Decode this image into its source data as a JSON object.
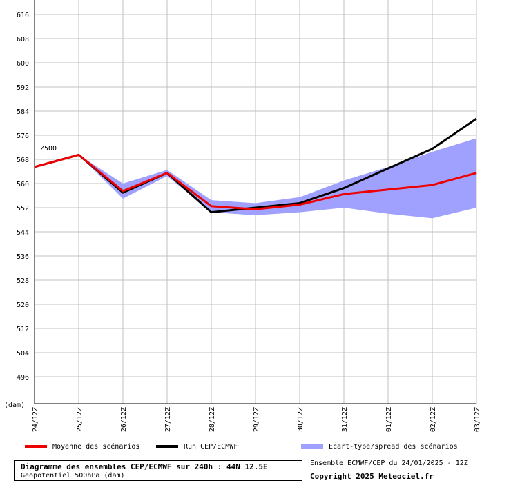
{
  "chart_data": {
    "type": "line",
    "y_unit_label": "(dam)",
    "series_label": "Z500",
    "ylim": [
      488,
      620
    ],
    "yticks": [
      496,
      504,
      512,
      520,
      528,
      536,
      544,
      552,
      560,
      568,
      576,
      584,
      592,
      600,
      608,
      616
    ],
    "categories": [
      "24/12Z",
      "25/12Z",
      "26/12Z",
      "27/12Z",
      "28/12Z",
      "29/12Z",
      "30/12Z",
      "31/12Z",
      "01/12Z",
      "02/12Z",
      "03/12Z"
    ],
    "grid": true,
    "series": [
      {
        "name": "Moyenne des scénarios",
        "color": "#ee0000",
        "values": [
          565.5,
          569.5,
          557.5,
          563.5,
          552.5,
          551.5,
          553,
          556.5,
          558,
          559.5,
          563.5
        ]
      },
      {
        "name": "Run CEP/ECMWF",
        "color": "#000000",
        "values": [
          565.5,
          569.5,
          557,
          563.5,
          550.5,
          552,
          553.5,
          558.5,
          565,
          571.5,
          581.5
        ]
      }
    ],
    "spread": {
      "name": "Ecart-type/spread des scénarios",
      "color": "#a0a0ff",
      "upper": [
        565.5,
        569.5,
        560,
        564.5,
        554.5,
        553.5,
        555.5,
        561,
        565.5,
        570.5,
        575
      ],
      "lower": [
        565.5,
        569.5,
        555,
        562.5,
        550.5,
        549.5,
        550.5,
        552,
        550,
        548.5,
        552
      ]
    }
  },
  "info": {
    "title": "Diagramme des ensembles CEP/ECMWF sur 240h : 44N 12.5E",
    "subtitle": "Geopotentiel 500hPa (dam)",
    "run": "Ensemble ECMWF/CEP du 24/01/2025 - 12Z",
    "copyright": "Copyright 2025 Meteociel.fr"
  }
}
